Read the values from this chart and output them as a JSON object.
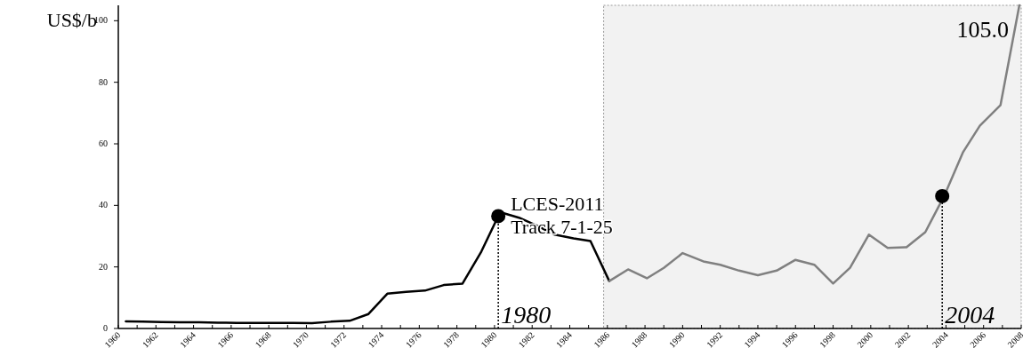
{
  "chart_data": {
    "type": "line",
    "ylabel": "US$/b",
    "xlim": [
      1960,
      2008
    ],
    "ylim": [
      0,
      105
    ],
    "yticks": [
      0,
      20,
      40,
      60,
      80,
      100
    ],
    "xticks": [
      1960,
      {
        "value": 1961,
        "label": null
      },
      1962,
      {
        "value": 1963,
        "label": null
      },
      1964,
      {
        "value": 1965,
        "label": null
      },
      1966,
      {
        "value": 1967,
        "label": null
      },
      1968,
      {
        "value": 1969,
        "label": null
      },
      1970,
      {
        "value": 1971,
        "label": null
      },
      1972,
      {
        "value": 1973,
        "label": null
      },
      1974,
      {
        "value": 1975,
        "label": null
      },
      1976,
      {
        "value": 1977,
        "label": null
      },
      1978,
      {
        "value": 1979,
        "label": null
      },
      1980,
      {
        "value": 1981,
        "label": null
      },
      1982,
      {
        "value": 1983,
        "label": null
      },
      1984,
      {
        "value": 1985,
        "label": null
      },
      1986,
      {
        "value": 1987,
        "label": null
      },
      1988,
      {
        "value": 1989,
        "label": null
      },
      1990,
      {
        "value": 1991,
        "label": null
      },
      1992,
      {
        "value": 1993,
        "label": null
      },
      1994,
      {
        "value": 1995,
        "label": null
      },
      1996,
      {
        "value": 1997,
        "label": null
      },
      1998,
      {
        "value": 1999,
        "label": null
      },
      2000,
      {
        "value": 2001,
        "label": null
      },
      2002,
      {
        "value": 2003,
        "label": null
      },
      2004,
      {
        "value": 2005,
        "label": null
      },
      2006,
      {
        "value": 2007,
        "label": null
      },
      2008
    ],
    "grid": false,
    "marker": "none",
    "line_style": "solid",
    "series": [
      {
        "color": "#000000",
        "x": [
          1960.4,
          1961.3,
          1962.3,
          1963.3,
          1964.3,
          1965.3,
          1966.3,
          1967.3,
          1968.3,
          1969.3,
          1970.3,
          1971.3,
          1972.3,
          1973.3,
          1974.3,
          1975.3,
          1976.3,
          1977.3,
          1978.3,
          1979.3,
          1980.3,
          1981.3,
          1982.3,
          1983.2,
          1984.2,
          1985.1,
          1986.1
        ],
        "values": [
          2.3,
          2.2,
          2.1,
          2.0,
          2.0,
          1.9,
          1.8,
          1.8,
          1.8,
          1.8,
          1.7,
          2.2,
          2.5,
          4.7,
          11.3,
          11.9,
          12.3,
          14.1,
          14.6,
          25.0,
          37.8,
          36.0,
          33.3,
          30.5,
          29.3,
          28.4,
          15.4
        ]
      },
      {
        "color": "#808080",
        "x": [
          1986.1,
          1987.1,
          1988.1,
          1989.0,
          1990.0,
          1991.1,
          1992.0,
          1993.0,
          1994.0,
          1995.0,
          1996.0,
          1997.0,
          1998.0,
          1998.9,
          1999.9,
          2000.9,
          2001.9,
          2002.9,
          2003.9,
          2004.9,
          2005.8,
          2006.9,
          2007.9
        ],
        "values": [
          15.4,
          19.2,
          16.3,
          19.7,
          24.5,
          21.8,
          20.7,
          18.8,
          17.3,
          18.8,
          22.3,
          20.7,
          14.6,
          19.7,
          30.5,
          26.2,
          26.4,
          31.3,
          43.0,
          57.2,
          65.9,
          72.6,
          105.0
        ],
        "value_labels": [
          null,
          null,
          null,
          null,
          null,
          null,
          null,
          null,
          null,
          null,
          null,
          null,
          null,
          null,
          null,
          null,
          null,
          null,
          null,
          null,
          null,
          null,
          "105.0"
        ]
      },
      {
        "type": "scatter",
        "marker": "circle",
        "color": "#000000",
        "x": [
          1980.2,
          2003.8
        ],
        "values": [
          36.5,
          43.0
        ]
      }
    ],
    "ref_lines": [
      {
        "axis": "x",
        "value": 1980.2,
        "label": "1980",
        "line_style": "dotted",
        "color": "#000000"
      },
      {
        "axis": "x",
        "value": 2003.8,
        "label": "2004",
        "line_style": "dotted",
        "color": "#000000"
      }
    ],
    "bands": [
      {
        "axis": "x",
        "from": 1985.8,
        "to": 2008,
        "color": "#f2f2f2"
      }
    ],
    "annotations": [
      {
        "text": "LCES-2011\nTrack 7-1-25",
        "x": 1980.2,
        "y": 36.5
      }
    ]
  }
}
